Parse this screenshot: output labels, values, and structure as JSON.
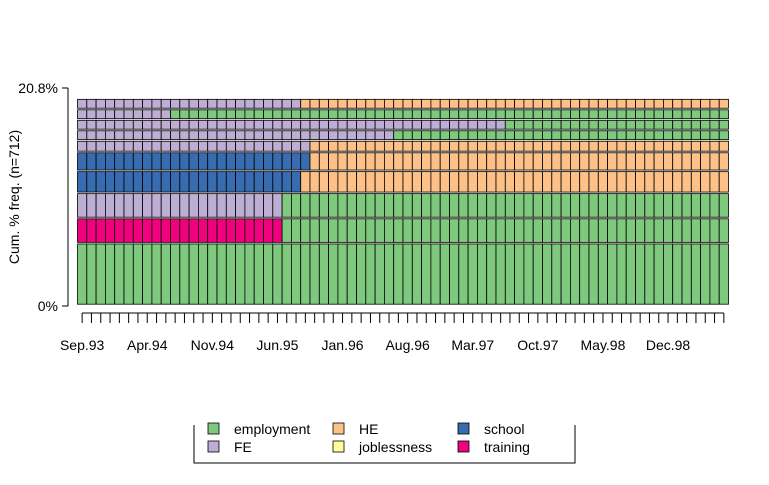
{
  "chart_data": {
    "type": "sequence-frequency",
    "ylabel": "Cum. % freq. (n=712)",
    "y_ticks": [
      "0%",
      "20.8%"
    ],
    "ylim": [
      0,
      20.8
    ],
    "x_months_total": 70,
    "x_start_month": "Sep.93",
    "x_tick_labels": [
      "Sep.93",
      "Apr.94",
      "Nov.94",
      "Jun.95",
      "Jan.96",
      "Aug.96",
      "Mar.97",
      "Oct.97",
      "May.98",
      "Dec.98"
    ],
    "x_tick_label_months": [
      0,
      7,
      14,
      21,
      28,
      35,
      42,
      49,
      56,
      63
    ],
    "states": [
      {
        "name": "employment",
        "color": "#7fc97f"
      },
      {
        "name": "FE",
        "color": "#beaed4"
      },
      {
        "name": "HE",
        "color": "#fdc086"
      },
      {
        "name": "joblessness",
        "color": "#ffff99"
      },
      {
        "name": "school",
        "color": "#386cb0"
      },
      {
        "name": "training",
        "color": "#f0027f"
      }
    ],
    "sequences": [
      {
        "rank": 1,
        "freq_pct": 5.9,
        "segments": [
          {
            "state": "employment",
            "months": 70
          }
        ]
      },
      {
        "rank": 2,
        "freq_pct": 2.4,
        "segments": [
          {
            "state": "training",
            "months": 22
          },
          {
            "state": "employment",
            "months": 48
          }
        ]
      },
      {
        "rank": 3,
        "freq_pct": 2.4,
        "segments": [
          {
            "state": "FE",
            "months": 22
          },
          {
            "state": "employment",
            "months": 48
          }
        ]
      },
      {
        "rank": 4,
        "freq_pct": 2.1,
        "segments": [
          {
            "state": "school",
            "months": 24
          },
          {
            "state": "HE",
            "months": 46
          }
        ]
      },
      {
        "rank": 5,
        "freq_pct": 1.8,
        "segments": [
          {
            "state": "school",
            "months": 25
          },
          {
            "state": "HE",
            "months": 45
          }
        ]
      },
      {
        "rank": 6,
        "freq_pct": 1.1,
        "segments": [
          {
            "state": "FE",
            "months": 25
          },
          {
            "state": "HE",
            "months": 45
          }
        ]
      },
      {
        "rank": 7,
        "freq_pct": 1.0,
        "segments": [
          {
            "state": "FE",
            "months": 34
          },
          {
            "state": "employment",
            "months": 36
          }
        ]
      },
      {
        "rank": 8,
        "freq_pct": 1.0,
        "segments": [
          {
            "state": "FE",
            "months": 46
          },
          {
            "state": "employment",
            "months": 24
          }
        ]
      },
      {
        "rank": 9,
        "freq_pct": 1.0,
        "segments": [
          {
            "state": "FE",
            "months": 10
          },
          {
            "state": "employment",
            "months": 60
          }
        ]
      },
      {
        "rank": 10,
        "freq_pct": 1.0,
        "segments": [
          {
            "state": "FE",
            "months": 24
          },
          {
            "state": "HE",
            "months": 46
          }
        ]
      }
    ]
  },
  "legend": {
    "items": [
      {
        "label": "employment",
        "color": "#7fc97f"
      },
      {
        "label": "FE",
        "color": "#beaed4"
      },
      {
        "label": "HE",
        "color": "#fdc086"
      },
      {
        "label": "joblessness",
        "color": "#ffff99"
      },
      {
        "label": "school",
        "color": "#386cb0"
      },
      {
        "label": "training",
        "color": "#f0027f"
      }
    ]
  }
}
